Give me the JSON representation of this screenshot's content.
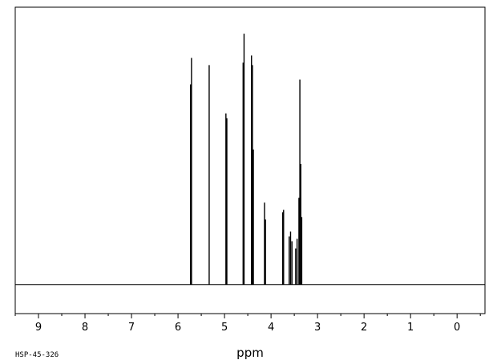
{
  "chart_data": {
    "type": "line",
    "title": "",
    "xlabel": "ppm",
    "ylabel": "",
    "xlim": [
      9.5,
      -0.6
    ],
    "ylim": [
      -0.12,
      1.15
    ],
    "x_reversed": true,
    "grid": false,
    "baseline_drawn": true,
    "x_ticks": [
      9,
      8,
      7,
      6,
      5,
      4,
      3,
      2,
      1,
      0
    ],
    "code": "HSP-45-326",
    "series": [
      {
        "peaks": [
          {
            "x": 5.73,
            "y": 0.83
          },
          {
            "x": 5.71,
            "y": 0.94
          },
          {
            "x": 5.33,
            "y": 0.91
          },
          {
            "x": 4.97,
            "y": 0.71
          },
          {
            "x": 4.95,
            "y": 0.69
          },
          {
            "x": 4.6,
            "y": 0.92
          },
          {
            "x": 4.58,
            "y": 1.04
          },
          {
            "x": 4.42,
            "y": 0.95
          },
          {
            "x": 4.4,
            "y": 0.91
          },
          {
            "x": 4.38,
            "y": 0.56
          },
          {
            "x": 4.14,
            "y": 0.34
          },
          {
            "x": 4.12,
            "y": 0.27
          },
          {
            "x": 3.75,
            "y": 0.3
          },
          {
            "x": 3.73,
            "y": 0.31
          },
          {
            "x": 3.61,
            "y": 0.2
          },
          {
            "x": 3.58,
            "y": 0.22
          },
          {
            "x": 3.55,
            "y": 0.18
          },
          {
            "x": 3.47,
            "y": 0.15
          },
          {
            "x": 3.44,
            "y": 0.19
          },
          {
            "x": 3.4,
            "y": 0.36
          },
          {
            "x": 3.38,
            "y": 0.85
          },
          {
            "x": 3.36,
            "y": 0.5
          },
          {
            "x": 3.34,
            "y": 0.28
          }
        ]
      }
    ]
  }
}
